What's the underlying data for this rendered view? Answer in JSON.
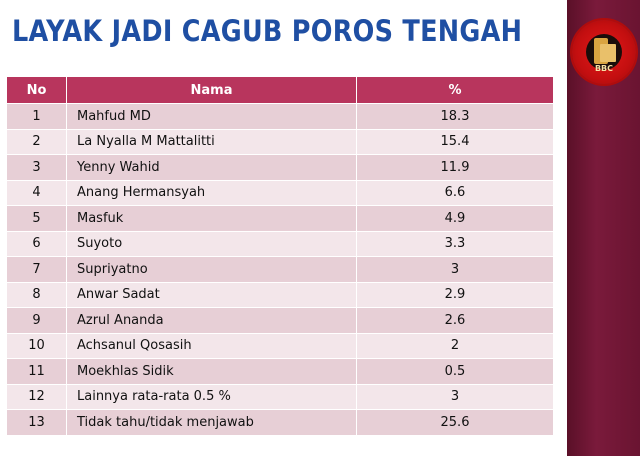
{
  "slide": {
    "title": "LAYAK JADI CAGUB POROS TENGAH",
    "logo_text": "BBC",
    "accent_color": "#b8355d",
    "title_color": "#1f4fa3"
  },
  "table": {
    "headers": [
      "No",
      "Nama",
      "%"
    ],
    "rows": [
      {
        "no": "1",
        "nama": "Mahfud MD",
        "pct": "18.3"
      },
      {
        "no": "2",
        "nama": "La Nyalla M Mattalitti",
        "pct": "15.4"
      },
      {
        "no": "3",
        "nama": "Yenny Wahid",
        "pct": "11.9"
      },
      {
        "no": "4",
        "nama": "Anang Hermansyah",
        "pct": "6.6"
      },
      {
        "no": "5",
        "nama": "Masfuk",
        "pct": "4.9"
      },
      {
        "no": "6",
        "nama": "Suyoto",
        "pct": "3.3"
      },
      {
        "no": "7",
        "nama": "Supriyatno",
        "pct": "3"
      },
      {
        "no": "8",
        "nama": "Anwar Sadat",
        "pct": "2.9"
      },
      {
        "no": "9",
        "nama": "Azrul Ananda",
        "pct": "2.6"
      },
      {
        "no": "10",
        "nama": "Achsanul Qosasih",
        "pct": "2"
      },
      {
        "no": "11",
        "nama": "Moekhlas Sidik",
        "pct": "0.5"
      },
      {
        "no": "12",
        "nama": "Lainnya rata-rata 0.5 %",
        "pct": "3"
      },
      {
        "no": "13",
        "nama": "Tidak tahu/tidak menjawab",
        "pct": "25.6"
      }
    ]
  }
}
